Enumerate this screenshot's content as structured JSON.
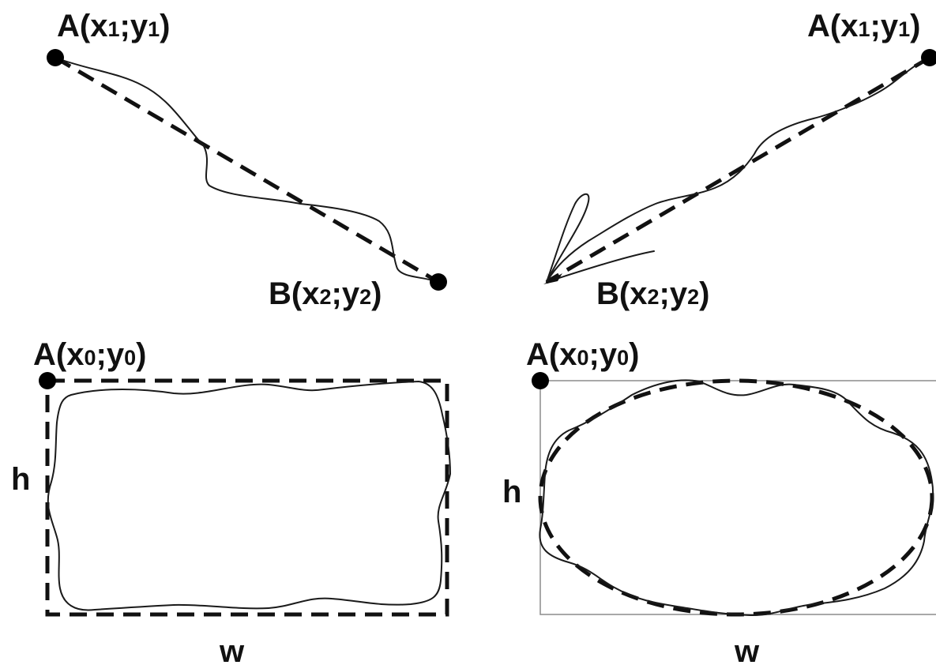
{
  "panels": {
    "line_correct": {
      "point_a": {
        "label": "A",
        "x_var": "x",
        "x_sub": "1",
        "y_var": "y",
        "y_sub": "1"
      },
      "point_b": {
        "label": "B",
        "x_var": "x",
        "x_sub": "2",
        "y_var": "y",
        "y_sub": "2"
      }
    },
    "line_overshoot": {
      "point_a": {
        "label": "A",
        "x_var": "x",
        "x_sub": "1",
        "y_var": "y",
        "y_sub": "1"
      },
      "point_b": {
        "label": "B",
        "x_var": "x",
        "x_sub": "2",
        "y_var": "y",
        "y_sub": "2"
      }
    },
    "rectangle": {
      "point_a": {
        "label": "A",
        "x_var": "x",
        "x_sub": "0",
        "y_var": "y",
        "y_sub": "0"
      },
      "height_label": "h",
      "width_label": "w"
    },
    "ellipse": {
      "point_a": {
        "label": "A",
        "x_var": "x",
        "x_sub": "0",
        "y_var": "y",
        "y_sub": "0"
      },
      "height_label": "h",
      "width_label": "w"
    }
  },
  "colors": {
    "ink": "#111111",
    "bounding_box": "#8c8c8c",
    "background": "#ffffff"
  }
}
